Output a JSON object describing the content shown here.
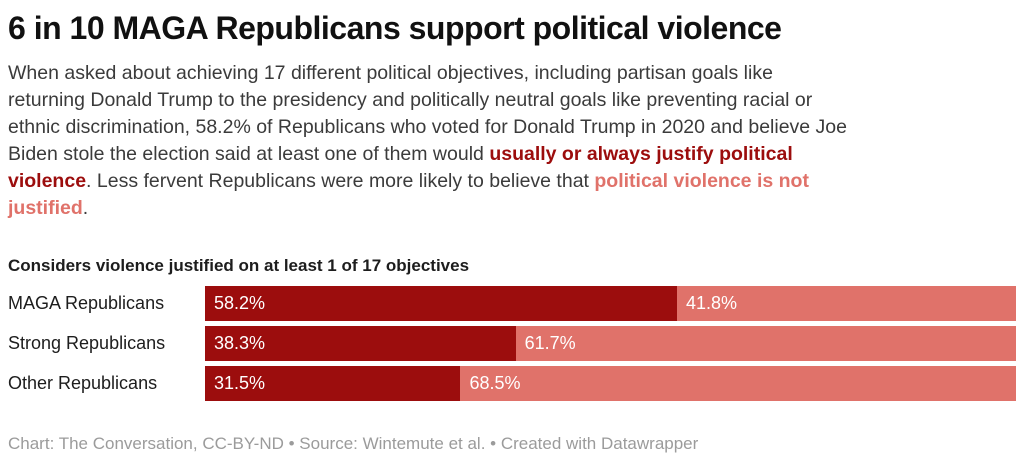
{
  "header": {
    "title": "6 in 10 MAGA Republicans support political violence",
    "description_lines": [
      [
        {
          "text": "When asked about achieving 17 different political objectives, including partisan goals like",
          "style": "normal"
        }
      ],
      [
        {
          "text": "returning Donald Trump to the presidency and politically neutral goals like preventing racial or",
          "style": "normal"
        }
      ],
      [
        {
          "text": "ethnic discrimination, 58.2% of Republicans who voted for Donald Trump in 2020 and believe Joe",
          "style": "normal"
        }
      ],
      [
        {
          "text": "Biden stole the election said at least one of them would ",
          "style": "normal"
        },
        {
          "text": "usually or always justify political",
          "style": "dark"
        }
      ],
      [
        {
          "text": "violence",
          "style": "dark"
        },
        {
          "text": ". Less fervent Republicans were more likely to believe that ",
          "style": "normal"
        },
        {
          "text": "political violence is not",
          "style": "light"
        }
      ],
      [
        {
          "text": "justified",
          "style": "light"
        },
        {
          "text": ".",
          "style": "normal"
        }
      ]
    ]
  },
  "colors": {
    "dark_red": "#9C0D0D",
    "light_red": "#E0726A",
    "body_text": "#3B3B3B",
    "muted_gray": "#9B9B9B"
  },
  "chart_data": {
    "type": "bar",
    "variant": "stacked-horizontal",
    "subtitle": "Considers violence justified on at least 1 of 17 objectives",
    "categories": [
      "MAGA Republicans",
      "Strong Republicans",
      "Other Republicans"
    ],
    "series": [
      {
        "name": "usually or always justify political violence",
        "color": "#9C0D0D",
        "values": [
          58.2,
          38.3,
          31.5
        ]
      },
      {
        "name": "political violence is not justified",
        "color": "#E0726A",
        "values": [
          41.8,
          61.7,
          68.5
        ]
      }
    ],
    "value_labels": [
      [
        "58.2%",
        "41.8%"
      ],
      [
        "38.3%",
        "61.7%"
      ],
      [
        "31.5%",
        "68.5%"
      ]
    ],
    "xlim": [
      0,
      100
    ],
    "unit": "%",
    "grid": false,
    "legend": "none"
  },
  "footer": {
    "attribution": "Chart: The Conversation, CC-BY-ND • Source: Wintemute et al. • Created with Datawrapper"
  }
}
